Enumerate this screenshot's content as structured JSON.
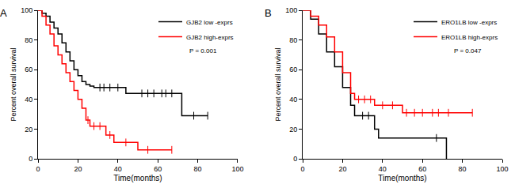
{
  "chart_data": [
    {
      "type": "line",
      "title": "A",
      "x_label": "Time(months)",
      "y_label": "Percent overall survival",
      "xlim": [
        0,
        100
      ],
      "xticks": [
        0,
        20,
        40,
        60,
        80,
        100
      ],
      "ylim": [
        0,
        100
      ],
      "yticks": [
        0,
        20,
        40,
        60,
        80,
        100
      ],
      "grid": false,
      "legend": "top right",
      "line_style": "step",
      "annotations": [
        "P = 0.001"
      ],
      "series": [
        {
          "name": "GJB2 low -exprs",
          "color": "#000000",
          "marker": "line-ns",
          "x": [
            0,
            2,
            4,
            6,
            8,
            10,
            12,
            14,
            16,
            18,
            20,
            22,
            24,
            26,
            28,
            30,
            44,
            72,
            85
          ],
          "values": [
            100,
            98,
            96,
            92,
            88,
            84,
            78,
            72,
            66,
            60,
            56,
            52,
            50,
            49,
            48,
            48,
            44,
            29,
            29
          ],
          "censored": {
            "x": [
              31,
              33,
              36,
              40,
              52,
              55,
              58,
              62,
              64,
              67,
              78,
              85
            ],
            "values": [
              48,
              48,
              48,
              48,
              44,
              44,
              44,
              44,
              44,
              44,
              29,
              29
            ]
          }
        },
        {
          "name": "GJB2 high-exprs",
          "color": "#ff0000",
          "marker": "line-ns",
          "x": [
            0,
            2,
            4,
            6,
            8,
            10,
            12,
            14,
            16,
            18,
            20,
            22,
            24,
            26,
            34,
            38,
            50,
            67
          ],
          "values": [
            100,
            96,
            90,
            84,
            76,
            70,
            64,
            58,
            52,
            46,
            40,
            34,
            26,
            22,
            16,
            11,
            6,
            6
          ],
          "censored": {
            "x": [
              25,
              28,
              31,
              36,
              44,
              55,
              67
            ],
            "values": [
              26,
              22,
              22,
              16,
              11,
              6,
              6
            ]
          }
        }
      ]
    },
    {
      "type": "line",
      "title": "B",
      "x_label": "Time(months)",
      "y_label": "Percent overall survival",
      "xlim": [
        0,
        100
      ],
      "xticks": [
        0,
        20,
        40,
        60,
        80,
        100
      ],
      "ylim": [
        0,
        100
      ],
      "yticks": [
        0,
        20,
        40,
        60,
        80,
        100
      ],
      "grid": false,
      "legend": "top right",
      "line_style": "step",
      "annotations": [
        "P = 0.047"
      ],
      "series": [
        {
          "name": "ERO1LB low -exprs",
          "color": "#000000",
          "marker": "line-ns",
          "x": [
            0,
            4,
            8,
            12,
            16,
            20,
            24,
            26,
            36,
            38,
            72
          ],
          "values": [
            100,
            94,
            84,
            72,
            62,
            48,
            36,
            29,
            20,
            14,
            0
          ],
          "censored": {
            "x": [
              30,
              33,
              67
            ],
            "values": [
              29,
              29,
              14
            ]
          }
        },
        {
          "name": "ERO1LB high-exprs",
          "color": "#ff0000",
          "marker": "line-ns",
          "x": [
            0,
            4,
            8,
            12,
            16,
            20,
            24,
            26,
            36,
            50,
            85
          ],
          "values": [
            100,
            96,
            90,
            82,
            72,
            58,
            44,
            40,
            36,
            31,
            31
          ],
          "censored": {
            "x": [
              28,
              31,
              34,
              40,
              45,
              52,
              56,
              60,
              65,
              68,
              73,
              85
            ],
            "values": [
              40,
              40,
              40,
              36,
              36,
              31,
              31,
              31,
              31,
              31,
              31,
              31
            ]
          }
        }
      ]
    }
  ]
}
